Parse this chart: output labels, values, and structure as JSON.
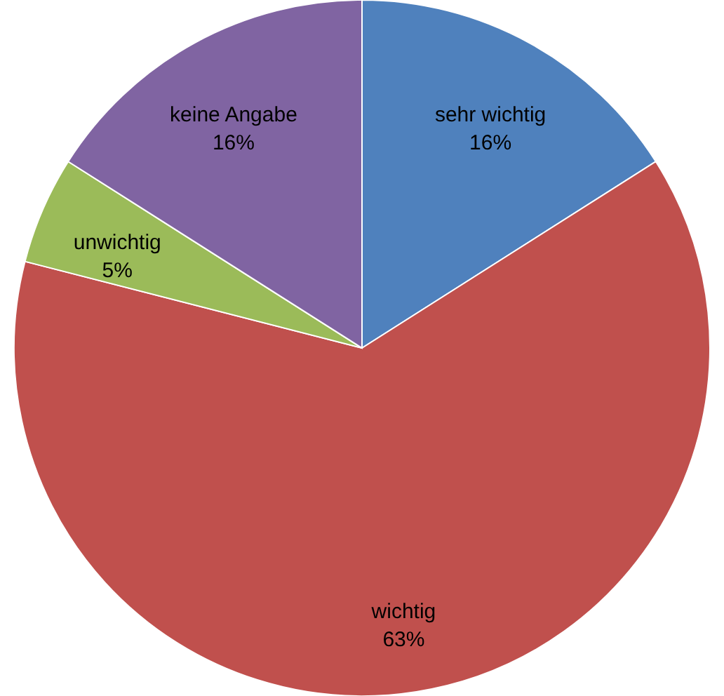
{
  "chart_data": {
    "type": "pie",
    "categories": [
      "sehr wichtig",
      "wichtig",
      "unwichtig",
      "keine Angabe"
    ],
    "values": [
      16,
      63,
      5,
      16
    ],
    "colors": [
      "#4f81bd",
      "#c0504d",
      "#9bbb59",
      "#8064a2"
    ],
    "value_labels": [
      "16%",
      "63%",
      "5%",
      "16%"
    ]
  }
}
